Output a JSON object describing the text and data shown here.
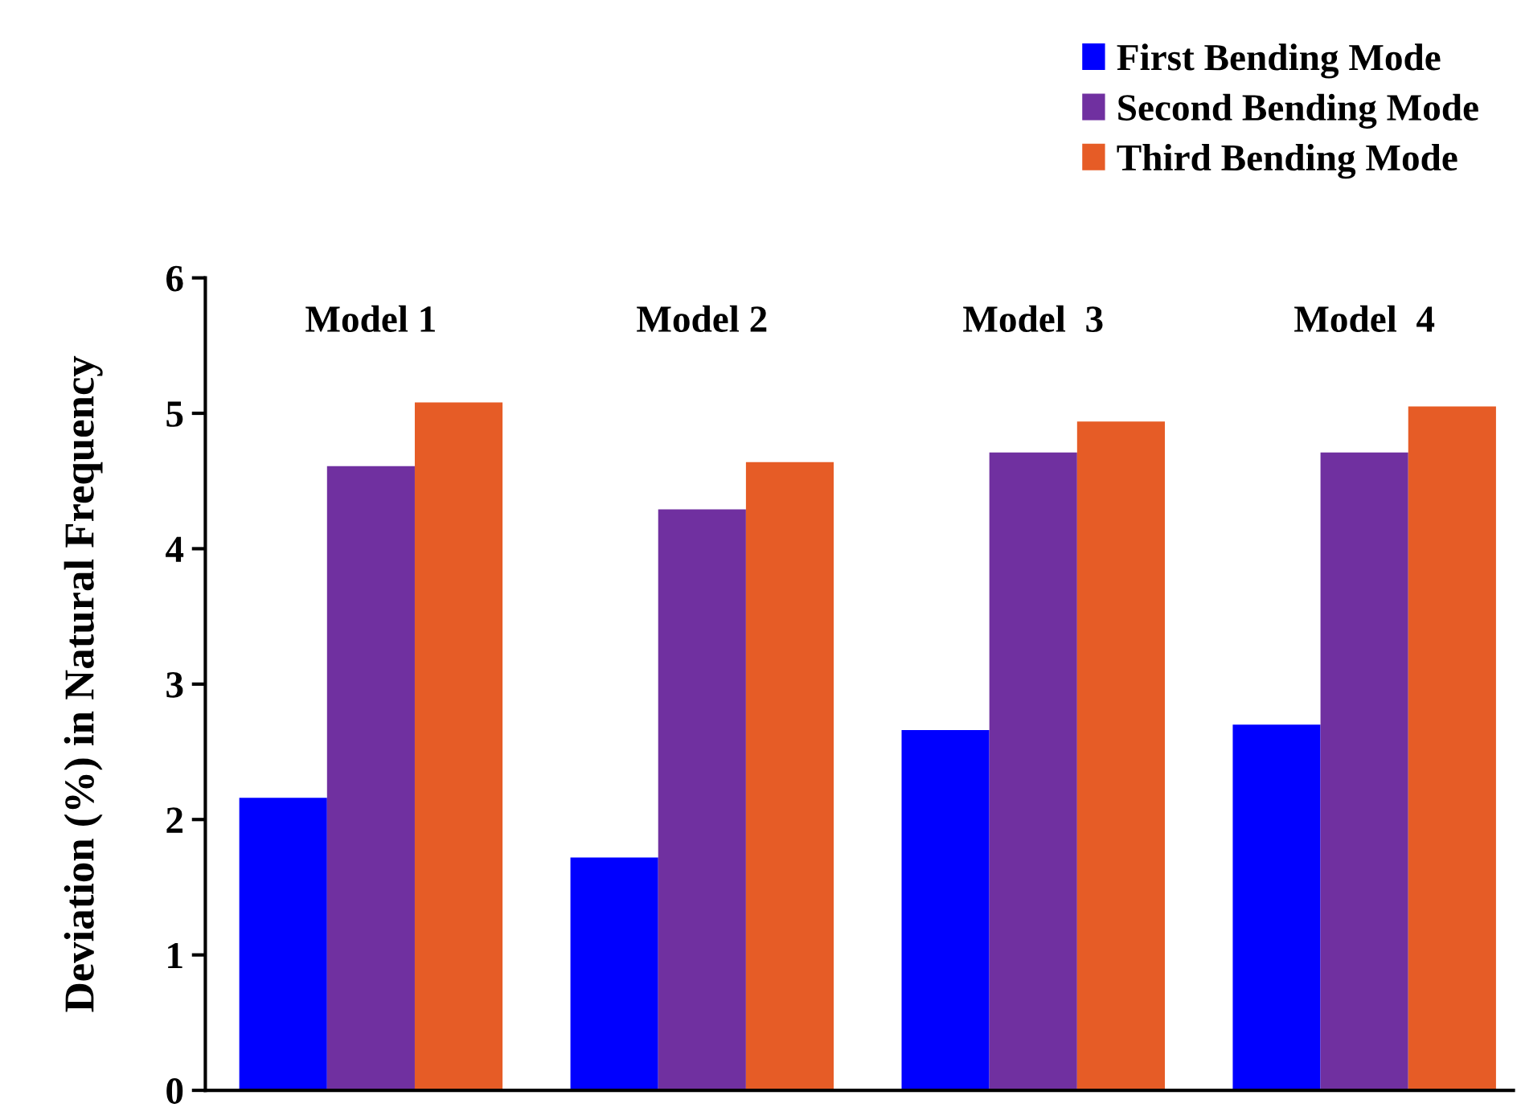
{
  "chart_data": {
    "type": "bar",
    "ylabel": "Deviation (%) in Natural Frequency",
    "categories": [
      "Model 1",
      "Model 2",
      "Model  3",
      "Model  4"
    ],
    "series": [
      {
        "name": "First Bending Mode",
        "color": "#0000ff",
        "values": [
          2.16,
          1.72,
          2.66,
          2.7
        ]
      },
      {
        "name": "Second Bending Mode",
        "color": "#7030a0",
        "values": [
          4.61,
          4.29,
          4.71,
          4.71
        ]
      },
      {
        "name": "Third Bending Mode",
        "color": "#e65c26",
        "values": [
          5.08,
          4.64,
          4.94,
          5.05
        ]
      }
    ],
    "ylim": [
      0,
      6
    ],
    "yticks": [
      0,
      1,
      2,
      3,
      4,
      5,
      6
    ],
    "grid": false,
    "legend": "top right"
  }
}
